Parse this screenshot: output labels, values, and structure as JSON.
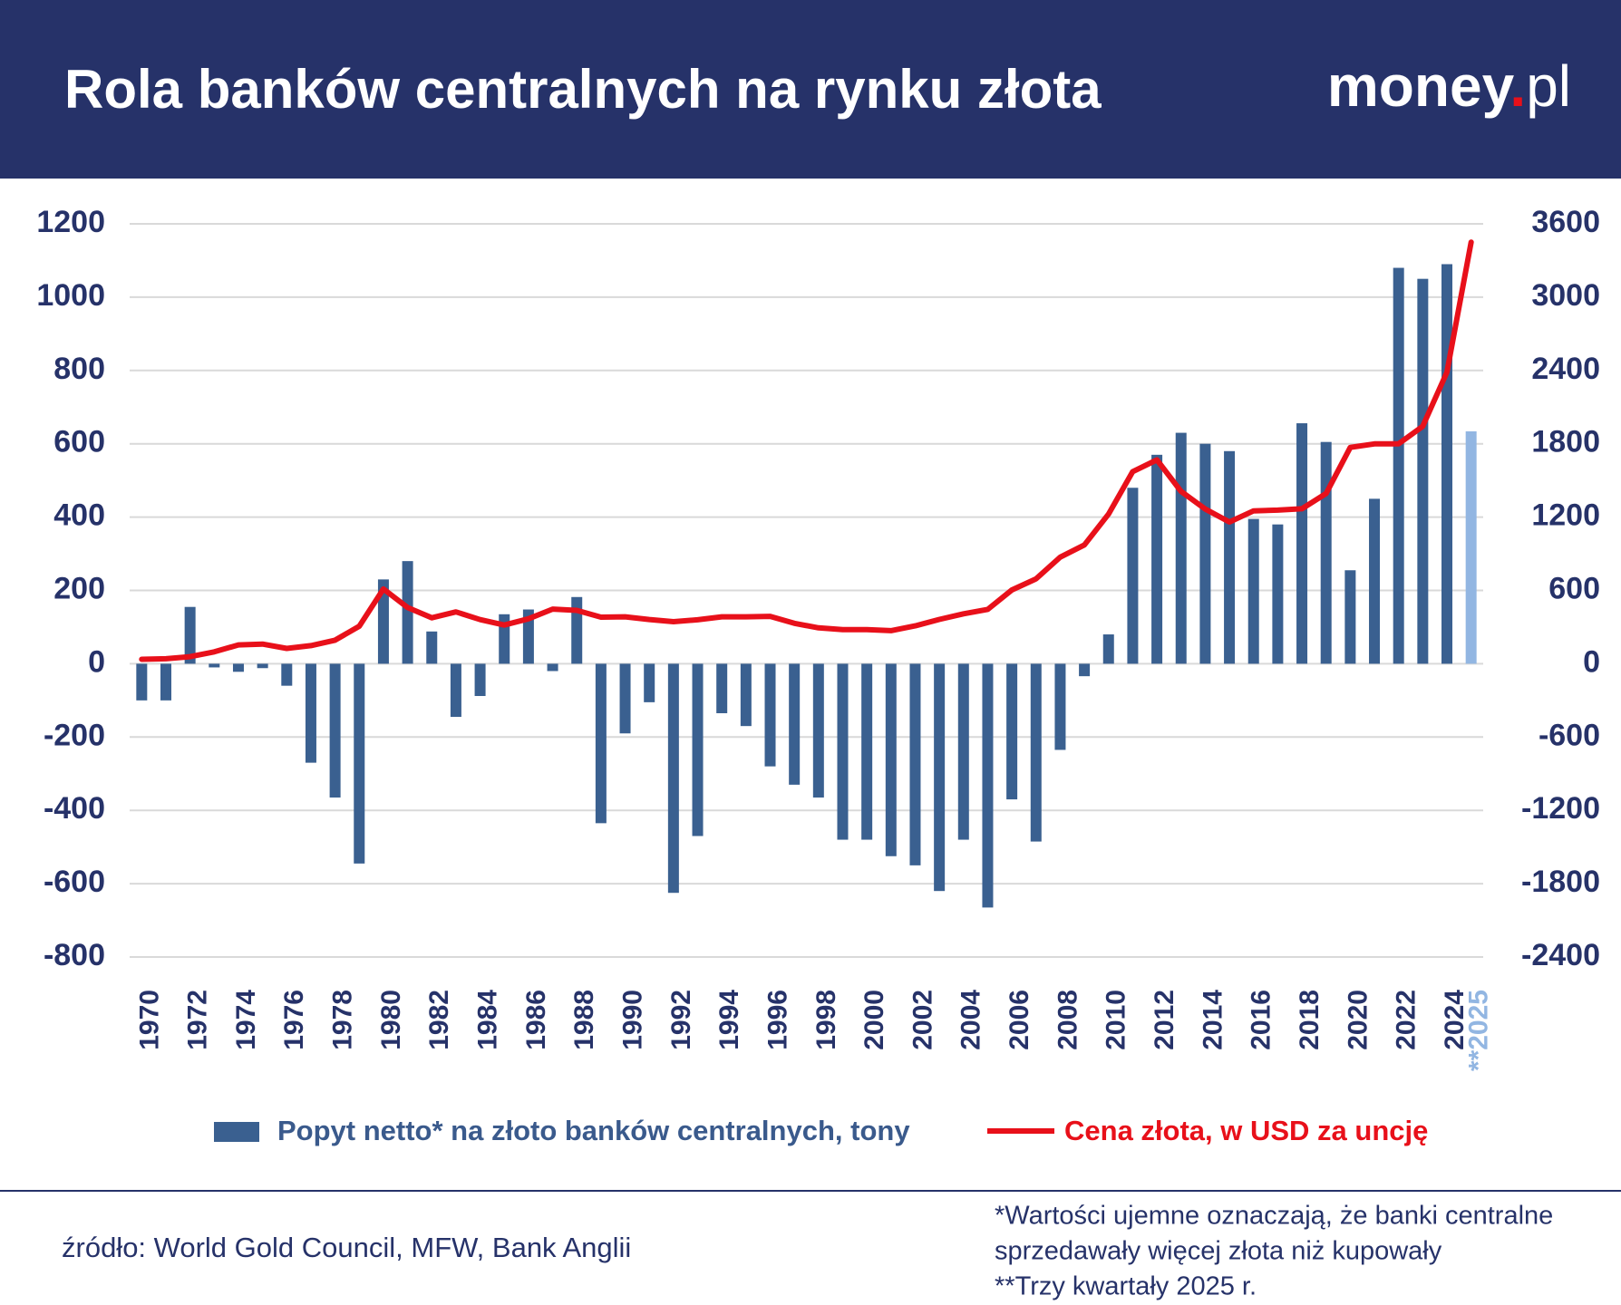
{
  "header": {
    "title": "Rola banków centralnych na rynku złota",
    "logo": {
      "main": "money",
      "dot": ".",
      "suffix": "pl"
    }
  },
  "chart_data": {
    "type": "combo",
    "categories": [
      "1970",
      null,
      "1972",
      null,
      "1974",
      null,
      "1976",
      null,
      "1978",
      null,
      "1980",
      null,
      "1982",
      null,
      "1984",
      null,
      "1986",
      null,
      "1988",
      null,
      "1990",
      null,
      "1992",
      null,
      "1994",
      null,
      "1996",
      null,
      "1998",
      null,
      "2000",
      null,
      "2002",
      null,
      "2004",
      null,
      "2006",
      null,
      "2008",
      null,
      "2010",
      null,
      "2012",
      null,
      "2014",
      null,
      "2016",
      null,
      "2018",
      null,
      "2020",
      null,
      "2022",
      null,
      "2024",
      "**2025"
    ],
    "series": [
      {
        "name": "Popyt netto* na złoto banków centralnych, tony",
        "type": "bar",
        "color": "#3a6090",
        "legend_color": "#3a5a8c",
        "colors": [
          "#3a6090",
          "#3a6090",
          "#3a6090",
          "#3a6090",
          "#3a6090",
          "#3a6090",
          "#3a6090",
          "#3a6090",
          "#3a6090",
          "#3a6090",
          "#3a6090",
          "#3a6090",
          "#3a6090",
          "#3a6090",
          "#3a6090",
          "#3a6090",
          "#3a6090",
          "#3a6090",
          "#3a6090",
          "#3a6090",
          "#3a6090",
          "#3a6090",
          "#3a6090",
          "#3a6090",
          "#3a6090",
          "#3a6090",
          "#3a6090",
          "#3a6090",
          "#3a6090",
          "#3a6090",
          "#3a6090",
          "#3a6090",
          "#3a6090",
          "#3a6090",
          "#3a6090",
          "#3a6090",
          "#3a6090",
          "#3a6090",
          "#3a6090",
          "#3a6090",
          "#3a6090",
          "#3a6090",
          "#3a6090",
          "#3a6090",
          "#3a6090",
          "#3a6090",
          "#3a6090",
          "#3a6090",
          "#3a6090",
          "#3a6090",
          "#3a6090",
          "#3a6090",
          "#3a6090",
          "#3a6090",
          "#3a6090",
          "#92b6e2"
        ],
        "values": [
          -100,
          -100,
          155,
          -10,
          -22,
          -12,
          -60,
          -270,
          -365,
          -545,
          230,
          280,
          88,
          -145,
          -88,
          135,
          148,
          -20,
          182,
          -435,
          -190,
          -105,
          -625,
          -470,
          -135,
          -170,
          -280,
          -330,
          -365,
          -480,
          -480,
          -525,
          -550,
          -620,
          -480,
          -665,
          -370,
          -485,
          -235,
          -34,
          80,
          480,
          570,
          630,
          600,
          580,
          395,
          380,
          656,
          605,
          255,
          450,
          1080,
          1050,
          1090,
          634
        ]
      },
      {
        "name": "Cena złota, w USD za uncję",
        "type": "line",
        "color": "#e8101a",
        "legend_color": "#e8101a",
        "axis": "y2",
        "values": [
          36,
          41,
          58,
          97,
          154,
          161,
          125,
          148,
          193,
          307,
          612,
          460,
          376,
          424,
          361,
          317,
          368,
          447,
          437,
          381,
          384,
          362,
          344,
          360,
          384,
          384,
          388,
          331,
          294,
          279,
          279,
          271,
          310,
          363,
          409,
          445,
          604,
          695,
          872,
          972,
          1225,
          1572,
          1669,
          1411,
          1266,
          1160,
          1251,
          1257,
          1268,
          1393,
          1770,
          1799,
          1800,
          1943,
          2386,
          3450
        ]
      }
    ],
    "ylim": [
      -800,
      1200
    ],
    "yticks": [
      -800,
      -600,
      -400,
      -200,
      0,
      200,
      400,
      600,
      800,
      1000,
      1200
    ],
    "y2lim": [
      -2400,
      3600
    ],
    "y2ticks": [
      -2400,
      -1800,
      -1200,
      -600,
      0,
      600,
      1200,
      1800,
      2400,
      3000,
      3600
    ],
    "grid": true
  },
  "footer": {
    "source": "źródło: World Gold Council, MFW, Bank Anglii",
    "notes": [
      "*Wartości ujemne oznaczają, że banki centralne",
      "sprzedawały więcej złota niż kupowały",
      "**Trzy kwartały 2025 r."
    ]
  }
}
